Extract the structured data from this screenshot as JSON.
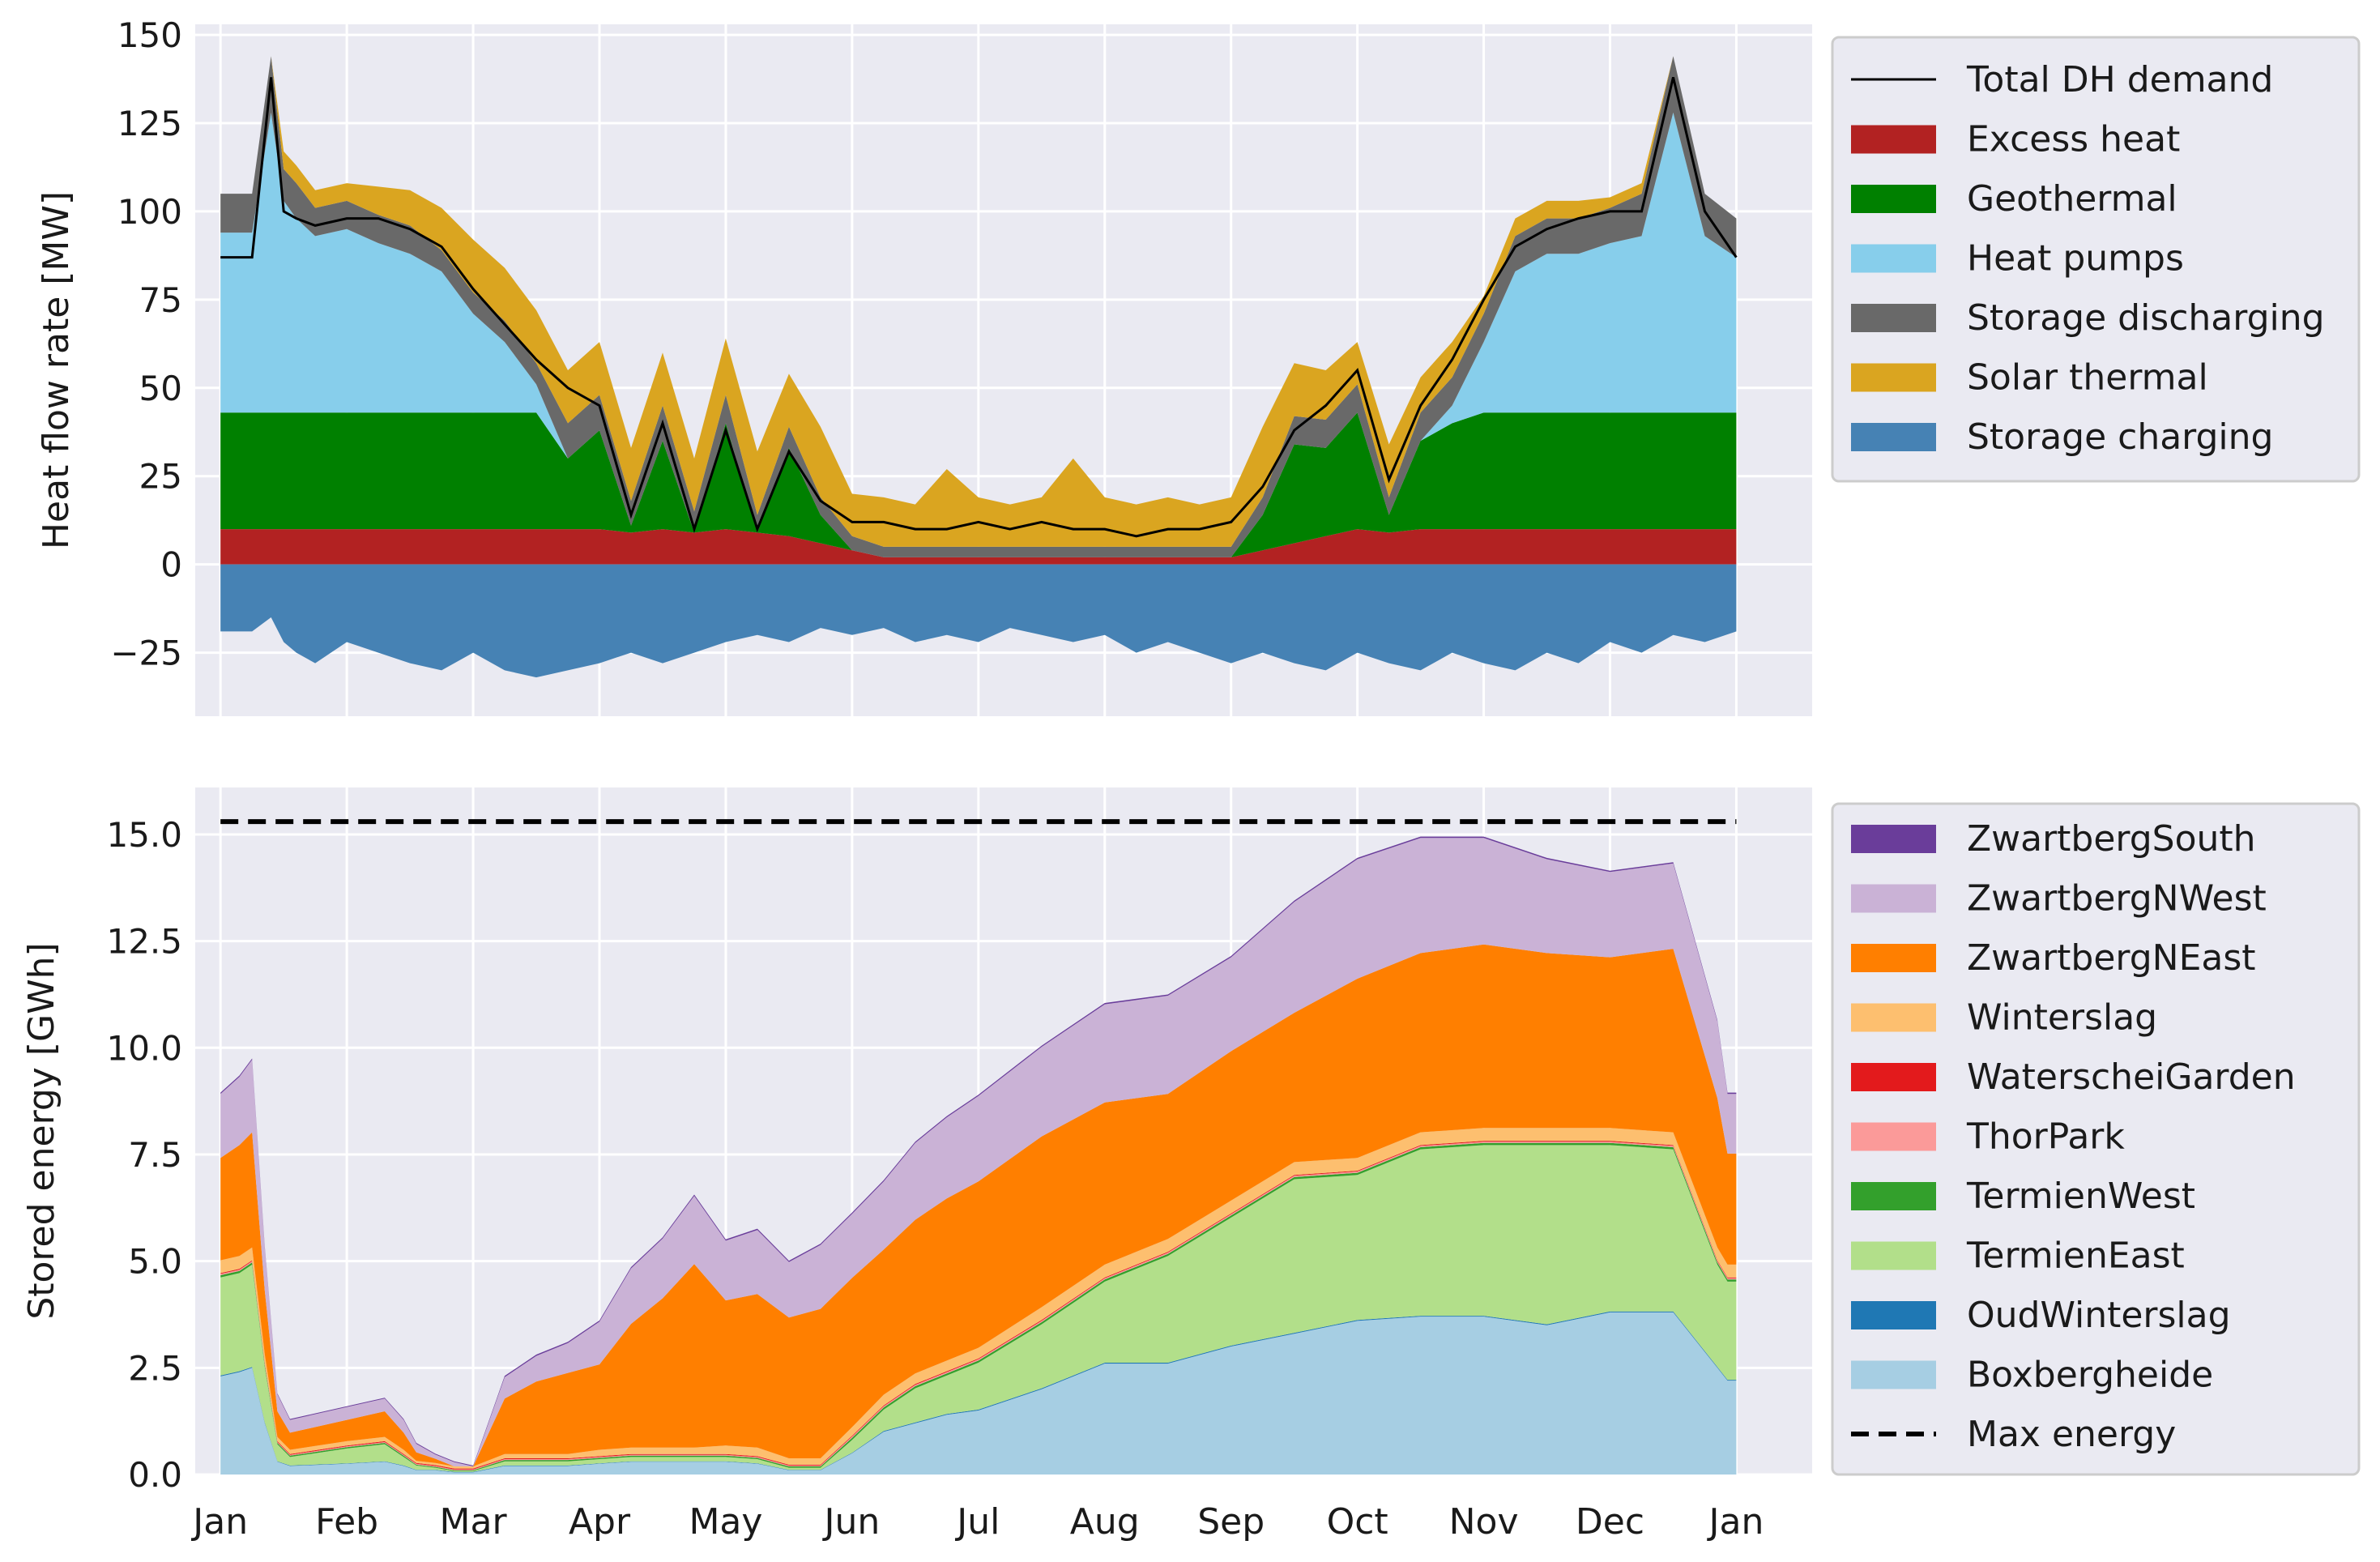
{
  "chart_data": [
    {
      "type": "area",
      "title": "",
      "xlabel": "",
      "ylabel": "Heat flow rate [MW]",
      "ylim": [
        -43,
        153
      ],
      "yticks": [
        -25,
        0,
        25,
        50,
        75,
        100,
        125,
        150
      ],
      "ytick_labels": [
        "−25",
        "0",
        "25",
        "50",
        "75",
        "100",
        "125",
        "150"
      ],
      "xlim": [
        -0.2,
        12.6
      ],
      "grid": true,
      "legend_position": "outside-right",
      "x": [
        0,
        0.25,
        0.4,
        0.5,
        0.6,
        0.75,
        1.0,
        1.25,
        1.5,
        1.75,
        2.0,
        2.25,
        2.5,
        2.75,
        3.0,
        3.25,
        3.5,
        3.75,
        4.0,
        4.25,
        4.5,
        4.75,
        5.0,
        5.25,
        5.5,
        5.75,
        6.0,
        6.25,
        6.5,
        6.75,
        7.0,
        7.25,
        7.5,
        7.75,
        8.0,
        8.25,
        8.5,
        8.75,
        9.0,
        9.25,
        9.5,
        9.75,
        10.0,
        10.25,
        10.5,
        10.75,
        11.0,
        11.25,
        11.5,
        11.75,
        12.0
      ],
      "stack_order_positive": [
        "Excess heat",
        "Geothermal",
        "Heat pumps",
        "Storage discharging",
        "Solar thermal"
      ],
      "series": [
        {
          "name": "Excess heat",
          "color": "#b22222",
          "values": [
            10,
            10,
            10,
            10,
            10,
            10,
            10,
            10,
            10,
            10,
            10,
            10,
            10,
            10,
            10,
            9,
            10,
            9,
            10,
            9,
            8,
            6,
            4,
            2,
            2,
            2,
            2,
            2,
            2,
            2,
            2,
            2,
            2,
            2,
            2,
            4,
            6,
            8,
            10,
            9,
            10,
            10,
            10,
            10,
            10,
            10,
            10,
            10,
            10,
            10,
            10
          ]
        },
        {
          "name": "Geothermal",
          "color": "#008000",
          "values": [
            33,
            33,
            33,
            33,
            33,
            33,
            33,
            33,
            33,
            33,
            33,
            33,
            33,
            20,
            28,
            2,
            25,
            0,
            30,
            0,
            25,
            8,
            0,
            0,
            0,
            0,
            0,
            0,
            0,
            0,
            0,
            0,
            0,
            0,
            0,
            10,
            28,
            25,
            33,
            5,
            25,
            30,
            33,
            33,
            33,
            33,
            33,
            33,
            33,
            33,
            33
          ]
        },
        {
          "name": "Heat pumps",
          "color": "#87ceeb",
          "values": [
            51,
            51,
            85,
            60,
            55,
            50,
            52,
            48,
            45,
            40,
            28,
            20,
            8,
            0,
            0,
            0,
            0,
            0,
            0,
            0,
            0,
            0,
            0,
            0,
            0,
            0,
            0,
            0,
            0,
            0,
            0,
            0,
            0,
            0,
            0,
            0,
            0,
            0,
            0,
            0,
            0,
            5,
            20,
            40,
            45,
            45,
            48,
            50,
            85,
            50,
            44
          ]
        },
        {
          "name": "Storage discharging",
          "color": "#696969",
          "values": [
            11,
            11,
            16,
            9,
            10,
            8,
            8,
            8,
            8,
            6,
            6,
            6,
            6,
            10,
            10,
            7,
            10,
            6,
            8,
            5,
            6,
            5,
            4,
            3,
            3,
            3,
            3,
            3,
            3,
            3,
            3,
            3,
            3,
            3,
            3,
            5,
            8,
            8,
            8,
            5,
            8,
            8,
            8,
            10,
            10,
            10,
            10,
            12,
            16,
            12,
            11
          ]
        },
        {
          "name": "Solar thermal",
          "color": "#daa520",
          "values": [
            0,
            0,
            0,
            5,
            5,
            5,
            5,
            8,
            10,
            12,
            15,
            15,
            15,
            15,
            15,
            15,
            15,
            15,
            16,
            18,
            15,
            20,
            12,
            14,
            12,
            22,
            14,
            12,
            14,
            25,
            14,
            12,
            14,
            12,
            14,
            20,
            15,
            14,
            12,
            15,
            10,
            10,
            5,
            5,
            5,
            5,
            3,
            3,
            0,
            0,
            0
          ]
        },
        {
          "name": "Storage charging",
          "color": "#4682b4",
          "values": [
            -19,
            -19,
            -15,
            -22,
            -25,
            -28,
            -22,
            -25,
            -28,
            -30,
            -25,
            -30,
            -32,
            -30,
            -28,
            -25,
            -28,
            -25,
            -22,
            -20,
            -22,
            -18,
            -20,
            -18,
            -22,
            -20,
            -22,
            -18,
            -20,
            -22,
            -20,
            -25,
            -22,
            -25,
            -28,
            -25,
            -28,
            -30,
            -25,
            -28,
            -30,
            -25,
            -28,
            -30,
            -25,
            -28,
            -22,
            -25,
            -20,
            -22,
            -19
          ]
        },
        {
          "name": "Total DH demand",
          "color": "#000000",
          "values": [
            87,
            87,
            138,
            100,
            98,
            96,
            98,
            98,
            95,
            90,
            78,
            68,
            58,
            50,
            45,
            14,
            40,
            10,
            38,
            10,
            32,
            18,
            12,
            12,
            10,
            10,
            12,
            10,
            12,
            10,
            10,
            8,
            10,
            10,
            12,
            22,
            38,
            45,
            55,
            24,
            45,
            58,
            75,
            90,
            95,
            98,
            100,
            100,
            138,
            100,
            87
          ]
        }
      ],
      "legend": [
        "Total DH demand",
        "Excess heat",
        "Geothermal",
        "Heat pumps",
        "Storage discharging",
        "Solar thermal",
        "Storage charging"
      ]
    },
    {
      "type": "area",
      "title": "",
      "xlabel": "",
      "ylabel": "Stored energy [GWh]",
      "ylim": [
        0,
        16.1
      ],
      "yticks": [
        0,
        2.5,
        5,
        7.5,
        10,
        12.5,
        15
      ],
      "ytick_labels": [
        "0.0",
        "2.5",
        "5.0",
        "7.5",
        "10.0",
        "12.5",
        "15.0"
      ],
      "xlim": [
        -0.2,
        12.6
      ],
      "grid": true,
      "legend_position": "outside-right",
      "x": [
        0,
        0.15,
        0.25,
        0.35,
        0.45,
        0.55,
        1.0,
        1.3,
        1.45,
        1.55,
        1.7,
        1.85,
        2.0,
        2.25,
        2.5,
        2.75,
        3.0,
        3.25,
        3.5,
        3.75,
        4.0,
        4.25,
        4.5,
        4.75,
        5.0,
        5.25,
        5.5,
        5.75,
        6.0,
        6.5,
        7.0,
        7.5,
        8.0,
        8.5,
        9.0,
        9.5,
        10.0,
        10.5,
        11.0,
        11.5,
        11.85,
        11.93,
        12.0
      ],
      "stack_order": [
        "Boxbergheide",
        "OudWinterslag",
        "TermienEast",
        "TermienWest",
        "ThorPark",
        "WaterscheiGarden",
        "Winterslag",
        "ZwartbergNEast",
        "ZwartbergNWest",
        "ZwartbergSouth"
      ],
      "series": [
        {
          "name": "Boxbergheide",
          "color": "#a6cee3",
          "values": [
            2.3,
            2.4,
            2.5,
            1.2,
            0.3,
            0.2,
            0.25,
            0.3,
            0.2,
            0.1,
            0.1,
            0.05,
            0.05,
            0.2,
            0.2,
            0.2,
            0.25,
            0.3,
            0.3,
            0.3,
            0.3,
            0.25,
            0.1,
            0.1,
            0.5,
            1.0,
            1.2,
            1.4,
            1.5,
            2.0,
            2.6,
            2.6,
            3.0,
            3.3,
            3.6,
            3.7,
            3.7,
            3.5,
            3.8,
            3.8,
            2.5,
            2.2,
            2.2
          ]
        },
        {
          "name": "OudWinterslag",
          "color": "#1f78b4",
          "values": [
            0.02,
            0.02,
            0.02,
            0.02,
            0.01,
            0.01,
            0.01,
            0.01,
            0.01,
            0.01,
            0.01,
            0.01,
            0.01,
            0.01,
            0.01,
            0.01,
            0.01,
            0.01,
            0.01,
            0.01,
            0.01,
            0.01,
            0.01,
            0.01,
            0.01,
            0.02,
            0.02,
            0.02,
            0.02,
            0.02,
            0.02,
            0.02,
            0.02,
            0.02,
            0.02,
            0.02,
            0.02,
            0.02,
            0.02,
            0.02,
            0.02,
            0.02,
            0.02
          ]
        },
        {
          "name": "TermienEast",
          "color": "#b2df8a",
          "values": [
            2.3,
            2.3,
            2.4,
            1.3,
            0.4,
            0.2,
            0.35,
            0.4,
            0.2,
            0.1,
            0.05,
            0.02,
            0.02,
            0.1,
            0.1,
            0.1,
            0.1,
            0.1,
            0.1,
            0.1,
            0.1,
            0.1,
            0.05,
            0.05,
            0.3,
            0.5,
            0.8,
            0.9,
            1.1,
            1.5,
            1.9,
            2.5,
            3.0,
            3.6,
            3.4,
            3.9,
            4.0,
            4.2,
            3.9,
            3.8,
            2.4,
            2.3,
            2.3
          ]
        },
        {
          "name": "TermienWest",
          "color": "#33a02c",
          "values": [
            0.05,
            0.05,
            0.05,
            0.05,
            0.03,
            0.03,
            0.03,
            0.03,
            0.03,
            0.02,
            0.02,
            0.02,
            0.02,
            0.03,
            0.03,
            0.03,
            0.03,
            0.03,
            0.03,
            0.03,
            0.03,
            0.03,
            0.03,
            0.03,
            0.05,
            0.05,
            0.05,
            0.05,
            0.05,
            0.05,
            0.05,
            0.05,
            0.05,
            0.05,
            0.05,
            0.05,
            0.05,
            0.05,
            0.05,
            0.05,
            0.05,
            0.05,
            0.05
          ]
        },
        {
          "name": "ThorPark",
          "color": "#fb9a99",
          "values": [
            0.03,
            0.03,
            0.03,
            0.03,
            0.02,
            0.02,
            0.02,
            0.02,
            0.02,
            0.02,
            0.02,
            0.02,
            0.02,
            0.02,
            0.02,
            0.02,
            0.02,
            0.02,
            0.02,
            0.02,
            0.02,
            0.02,
            0.02,
            0.02,
            0.03,
            0.03,
            0.03,
            0.03,
            0.03,
            0.03,
            0.03,
            0.03,
            0.03,
            0.03,
            0.03,
            0.03,
            0.03,
            0.03,
            0.03,
            0.03,
            0.03,
            0.03,
            0.03
          ]
        },
        {
          "name": "WaterscheiGarden",
          "color": "#e31a1c",
          "values": [
            0.02,
            0.02,
            0.02,
            0.02,
            0.02,
            0.02,
            0.02,
            0.02,
            0.02,
            0.02,
            0.02,
            0.02,
            0.02,
            0.02,
            0.02,
            0.02,
            0.02,
            0.02,
            0.02,
            0.02,
            0.02,
            0.02,
            0.02,
            0.02,
            0.02,
            0.02,
            0.02,
            0.02,
            0.02,
            0.02,
            0.02,
            0.02,
            0.02,
            0.02,
            0.02,
            0.02,
            0.02,
            0.02,
            0.02,
            0.02,
            0.02,
            0.02,
            0.02
          ]
        },
        {
          "name": "Winterslag",
          "color": "#fdbf6f",
          "values": [
            0.3,
            0.3,
            0.3,
            0.2,
            0.1,
            0.1,
            0.1,
            0.1,
            0.1,
            0.05,
            0.05,
            0.05,
            0.05,
            0.1,
            0.1,
            0.1,
            0.15,
            0.15,
            0.15,
            0.15,
            0.2,
            0.2,
            0.15,
            0.15,
            0.2,
            0.25,
            0.25,
            0.25,
            0.25,
            0.3,
            0.3,
            0.3,
            0.3,
            0.3,
            0.3,
            0.3,
            0.3,
            0.3,
            0.3,
            0.3,
            0.3,
            0.3,
            0.3
          ]
        },
        {
          "name": "ZwartbergNEast",
          "color": "#ff7f00",
          "values": [
            2.4,
            2.6,
            2.7,
            1.5,
            0.6,
            0.4,
            0.5,
            0.6,
            0.4,
            0.2,
            0.1,
            0.0,
            0.0,
            1.3,
            1.7,
            1.9,
            2.0,
            2.9,
            3.5,
            4.3,
            3.4,
            3.6,
            3.3,
            3.5,
            3.5,
            3.4,
            3.6,
            3.8,
            3.9,
            4.0,
            3.8,
            3.4,
            3.5,
            3.5,
            4.2,
            4.2,
            4.3,
            4.1,
            4.0,
            4.3,
            3.5,
            2.6,
            2.6
          ]
        },
        {
          "name": "ZwartbergNWest",
          "color": "#cab2d6",
          "values": [
            1.5,
            1.6,
            1.7,
            1.0,
            0.4,
            0.3,
            0.3,
            0.3,
            0.3,
            0.2,
            0.1,
            0.1,
            0.0,
            0.5,
            0.6,
            0.7,
            1.0,
            1.3,
            1.4,
            1.6,
            1.4,
            1.5,
            1.3,
            1.5,
            1.5,
            1.6,
            1.8,
            1.9,
            2.0,
            2.1,
            2.3,
            2.3,
            2.2,
            2.6,
            2.8,
            2.7,
            2.5,
            2.2,
            2.0,
            2.0,
            1.8,
            1.4,
            1.4
          ]
        },
        {
          "name": "ZwartbergSouth",
          "color": "#6a3d9a",
          "values": [
            0.03,
            0.03,
            0.03,
            0.03,
            0.02,
            0.02,
            0.02,
            0.02,
            0.02,
            0.02,
            0.02,
            0.02,
            0.02,
            0.03,
            0.03,
            0.03,
            0.03,
            0.03,
            0.03,
            0.03,
            0.03,
            0.03,
            0.03,
            0.03,
            0.03,
            0.03,
            0.03,
            0.03,
            0.03,
            0.03,
            0.03,
            0.03,
            0.03,
            0.03,
            0.03,
            0.03,
            0.03,
            0.03,
            0.03,
            0.03,
            0.03,
            0.03,
            0.03
          ]
        }
      ],
      "max_energy": {
        "name": "Max energy",
        "value": 15.3,
        "style": "dashed",
        "color": "#000000"
      },
      "legend": [
        "ZwartbergSouth",
        "ZwartbergNWest",
        "ZwartbergNEast",
        "Winterslag",
        "WaterscheiGarden",
        "ThorPark",
        "TermienWest",
        "TermienEast",
        "OudWinterslag",
        "Boxbergheide",
        "Max energy"
      ]
    }
  ],
  "x_axis": {
    "tick_labels": [
      "Jan",
      "Feb",
      "Mar",
      "Apr",
      "May",
      "Jun",
      "Jul",
      "Aug",
      "Sep",
      "Oct",
      "Nov",
      "Dec",
      "Jan"
    ],
    "tick_positions": [
      0,
      1,
      2,
      3,
      4,
      5,
      6,
      7,
      8,
      9,
      10,
      11,
      12
    ]
  }
}
